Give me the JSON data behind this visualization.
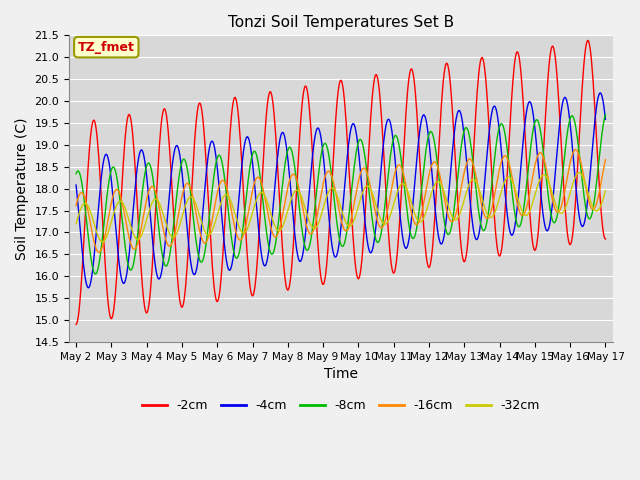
{
  "title": "Tonzi Soil Temperatures Set B",
  "xlabel": "Time",
  "ylabel": "Soil Temperature (C)",
  "ylim": [
    14.5,
    21.5
  ],
  "x_tick_labels": [
    "May 2",
    "May 3",
    "May 4",
    "May 5",
    "May 6",
    "May 7",
    "May 8",
    "May 9",
    "May 10",
    "May 11",
    "May 12",
    "May 13",
    "May 14",
    "May 15",
    "May 16",
    "May 17"
  ],
  "series_order": [
    "-2cm",
    "-4cm",
    "-8cm",
    "-16cm",
    "-32cm"
  ],
  "series": {
    "-2cm": {
      "color": "#ff0000",
      "amplitude": 2.3,
      "phase_lag": 0.0,
      "trend": 0.13
    },
    "-4cm": {
      "color": "#0000ee",
      "amplitude": 1.5,
      "phase_lag": 0.35,
      "trend": 0.1
    },
    "-8cm": {
      "color": "#00bb00",
      "amplitude": 1.2,
      "phase_lag": 0.55,
      "trend": 0.09
    },
    "-16cm": {
      "color": "#ff8800",
      "amplitude": 0.7,
      "phase_lag": 0.65,
      "trend": 0.07
    },
    "-32cm": {
      "color": "#cccc00",
      "amplitude": 0.45,
      "phase_lag": 0.75,
      "trend": 0.05
    }
  },
  "base_temp": 17.2,
  "period": 1.0,
  "n_points": 720,
  "annotation_text": "TZ_fmet",
  "fig_bg_color": "#f0f0f0",
  "plot_bg_color": "#d8d8d8",
  "grid_color": "#ffffff"
}
